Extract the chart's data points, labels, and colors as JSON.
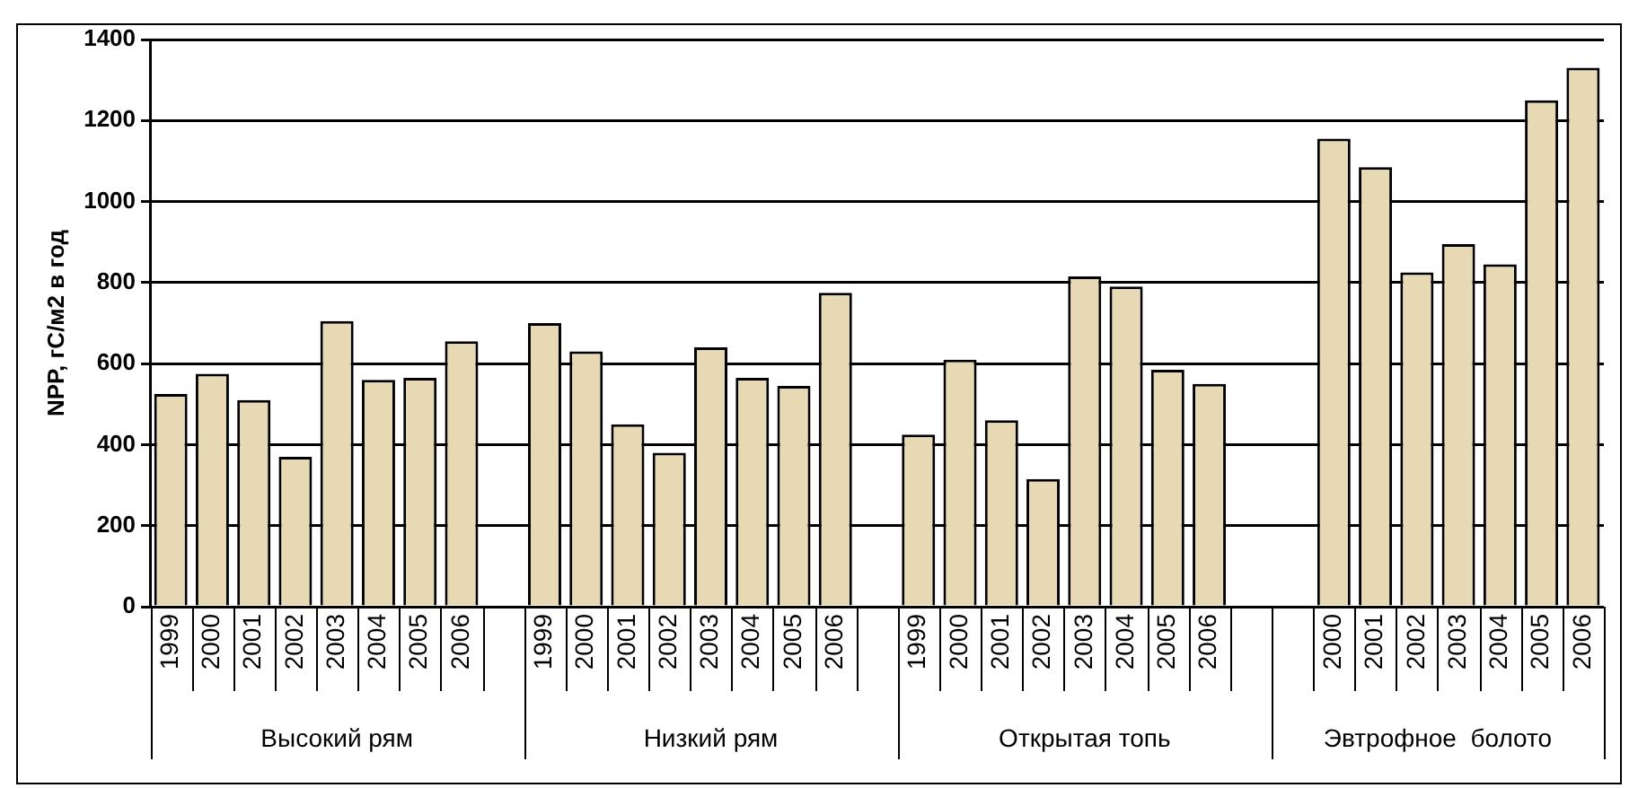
{
  "chart_data": {
    "type": "bar",
    "ylabel": "NPP, гС/м2 в год",
    "categories": [
      "1999",
      "2000",
      "2001",
      "2002",
      "2003",
      "2004",
      "2005",
      "2006",
      null,
      "1999",
      "2000",
      "2001",
      "2002",
      "2003",
      "2004",
      "2005",
      "2006",
      null,
      "1999",
      "2000",
      "2001",
      "2002",
      "2003",
      "2004",
      "2005",
      "2006",
      null,
      null,
      "2000",
      "2001",
      "2002",
      "2003",
      "2004",
      "2005",
      "2006"
    ],
    "values": [
      525,
      575,
      510,
      370,
      705,
      560,
      565,
      655,
      null,
      700,
      630,
      450,
      380,
      640,
      565,
      545,
      775,
      null,
      425,
      610,
      460,
      315,
      815,
      790,
      585,
      550,
      null,
      null,
      1155,
      1085,
      825,
      895,
      845,
      1250,
      1330
    ],
    "color": "#e8d9b5",
    "ylim": [
      0,
      1400
    ],
    "yticks": [
      0,
      200,
      400,
      600,
      800,
      1000,
      1200,
      1400
    ],
    "grid": "y",
    "legend": false,
    "annotations": [
      "Высокий рям",
      "Низкий рям",
      "Открытая топь",
      "Эвтрофное  болото"
    ]
  }
}
